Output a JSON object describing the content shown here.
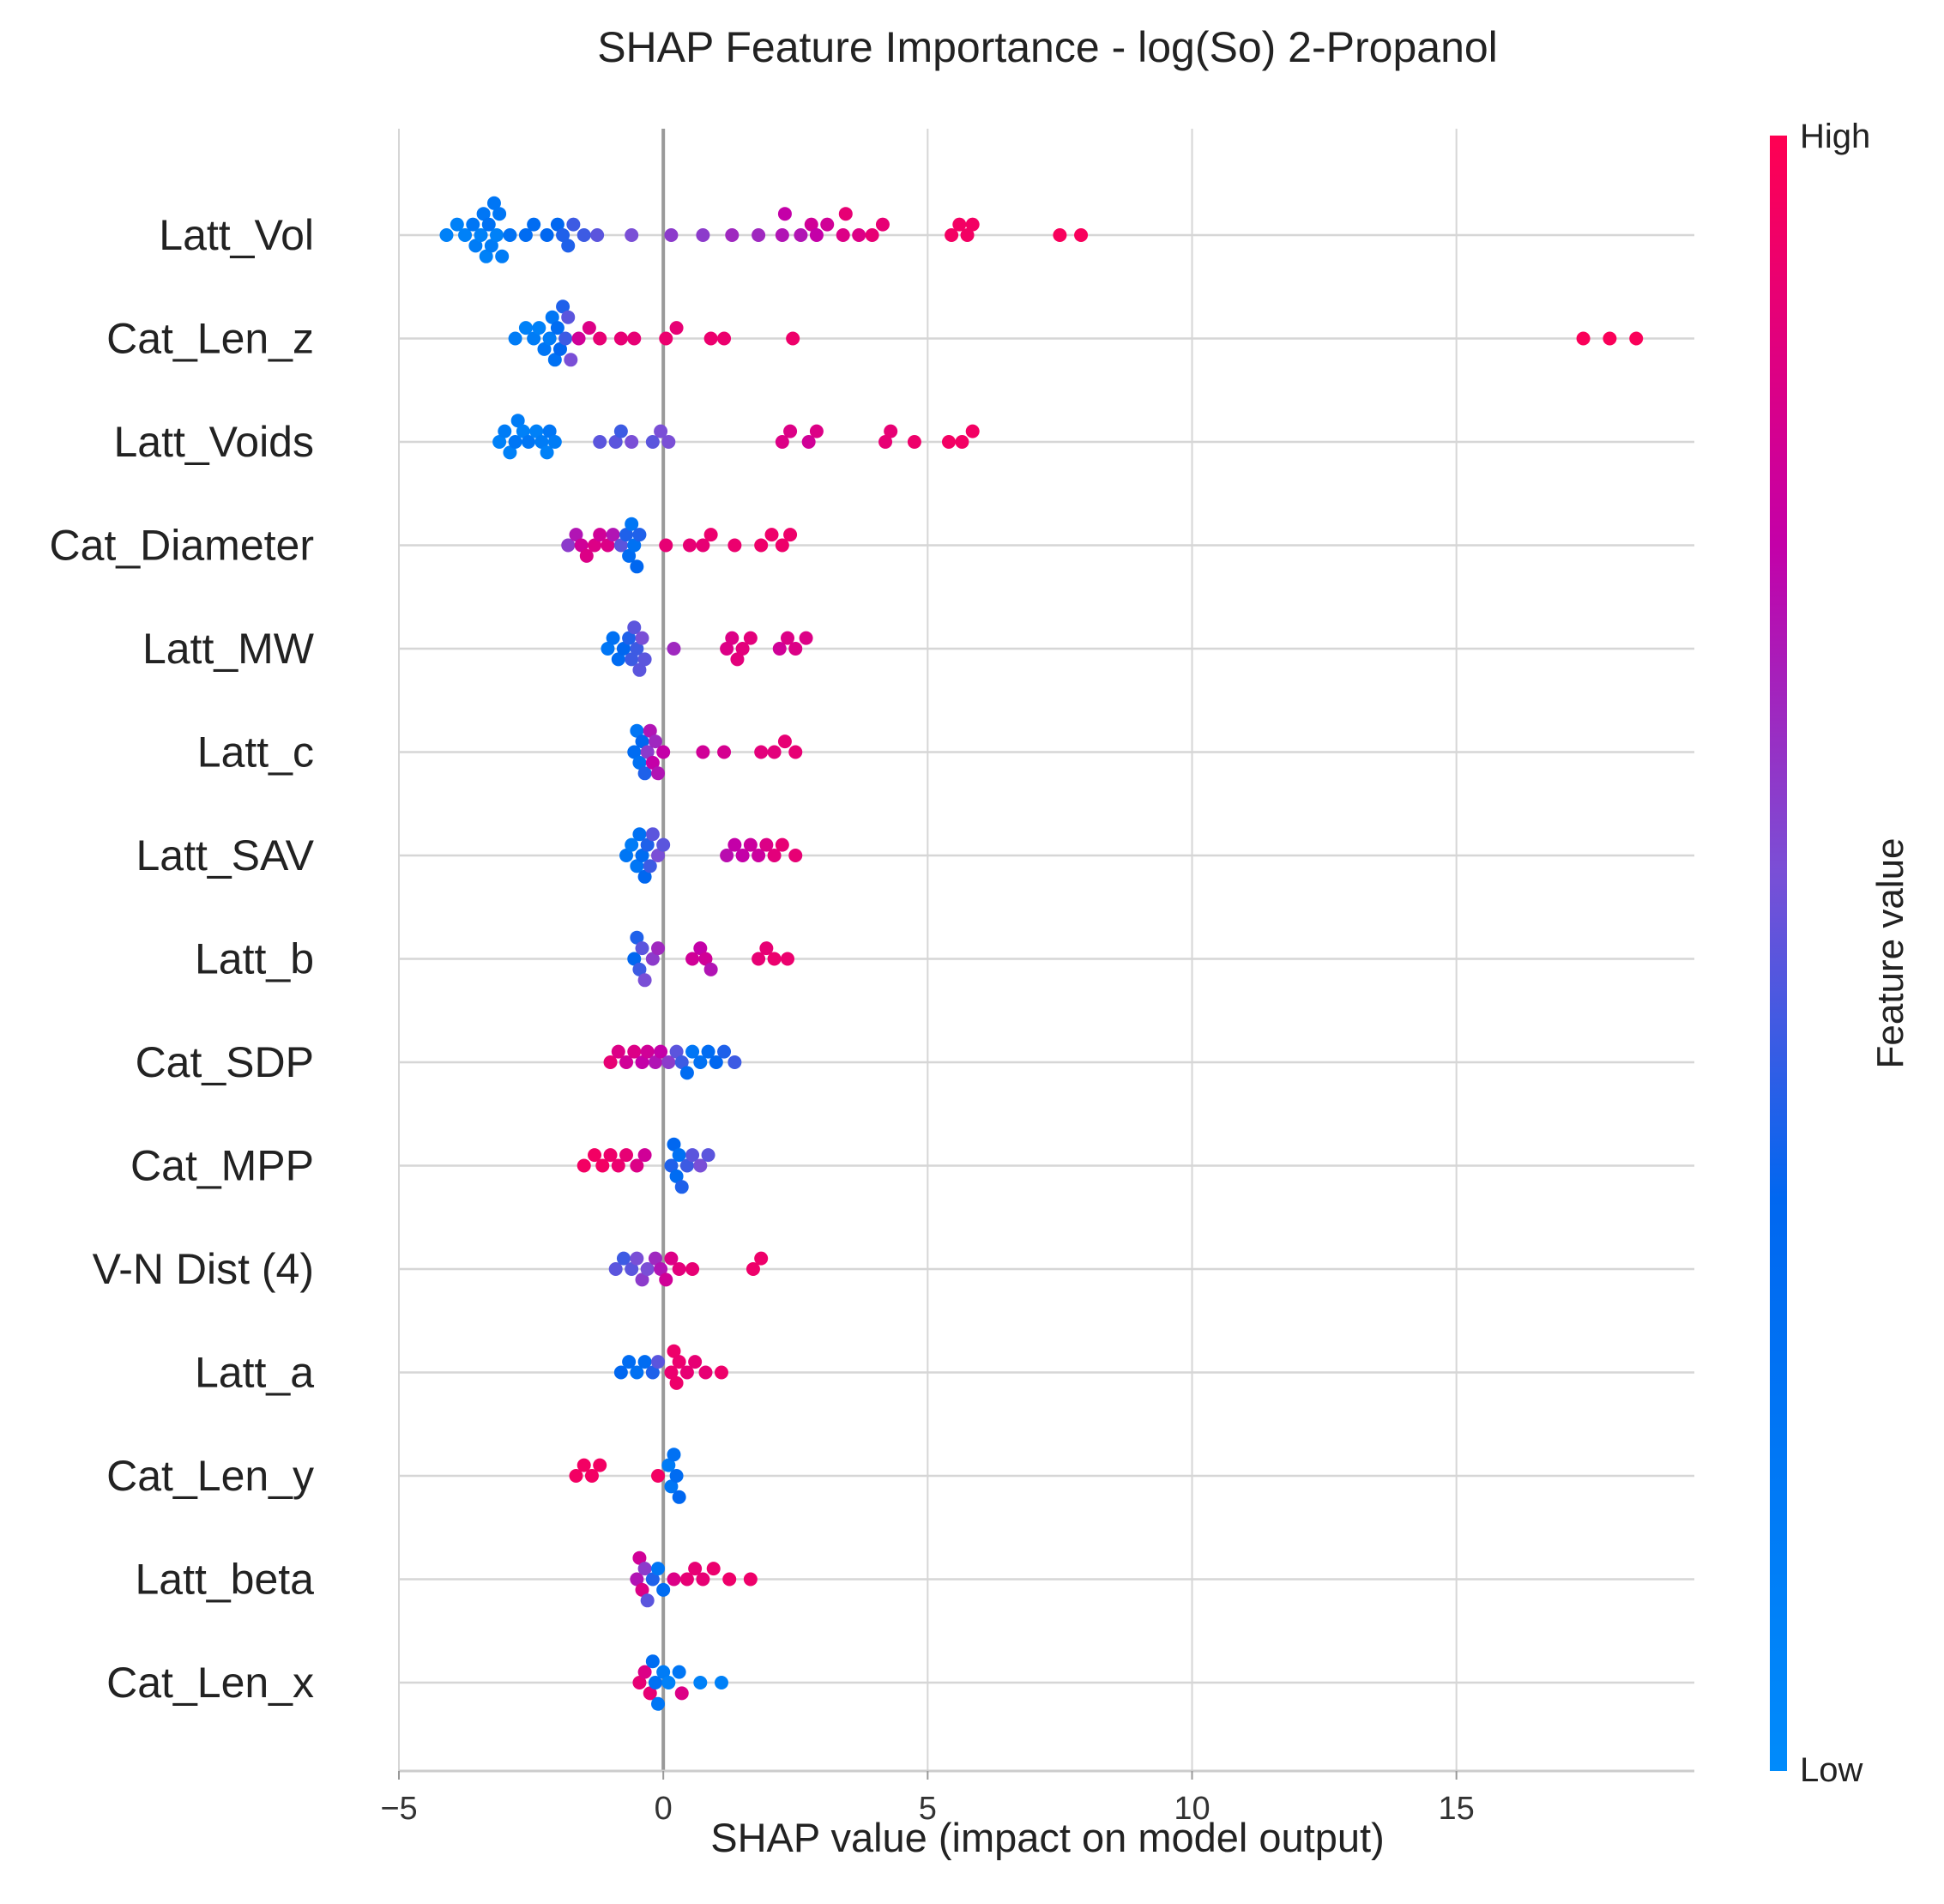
{
  "chart_data": {
    "type": "scatter",
    "subtype": "shap-beeswarm",
    "title": "SHAP Feature Importance - log(So) 2-Propanol",
    "xlabel": "SHAP value (impact on model output)",
    "xlim": [
      -5,
      19.5
    ],
    "xticks": [
      -5,
      0,
      5,
      10,
      15
    ],
    "xtick_labels": [
      "−5",
      "0",
      "5",
      "10",
      "15"
    ],
    "grid": true,
    "colorbar": {
      "label": "Feature value",
      "high_label": "High",
      "low_label": "Low",
      "low_color": "#008bfb",
      "high_color": "#ff0052"
    },
    "features": [
      {
        "name": "Latt_Vol",
        "points": [
          [
            -4.1,
            0.1
          ],
          [
            -3.9,
            0.1
          ],
          [
            -3.75,
            0.1
          ],
          [
            -3.6,
            0.2
          ],
          [
            -3.55,
            0.15
          ],
          [
            -3.45,
            0.1
          ],
          [
            -3.4,
            0.2
          ],
          [
            -3.35,
            0.1
          ],
          [
            -3.3,
            0.25
          ],
          [
            -3.25,
            0.15
          ],
          [
            -3.2,
            0.2
          ],
          [
            -3.15,
            0.1
          ],
          [
            -3.1,
            0.2
          ],
          [
            -3.05,
            0.15
          ],
          [
            -2.9,
            0.25
          ],
          [
            -2.6,
            0.3
          ],
          [
            -2.45,
            0.3
          ],
          [
            -2.2,
            0.35
          ],
          [
            -2.0,
            0.35
          ],
          [
            -1.9,
            0.4
          ],
          [
            -1.8,
            0.4
          ],
          [
            -1.7,
            0.45
          ],
          [
            -1.5,
            0.45
          ],
          [
            -1.25,
            0.5
          ],
          [
            -0.6,
            0.55
          ],
          [
            0.15,
            0.6
          ],
          [
            0.75,
            0.6
          ],
          [
            1.3,
            0.65
          ],
          [
            1.8,
            0.65
          ],
          [
            2.25,
            0.7
          ],
          [
            2.3,
            0.75
          ],
          [
            2.6,
            0.7
          ],
          [
            2.8,
            0.8
          ],
          [
            2.9,
            0.75
          ],
          [
            3.1,
            0.8
          ],
          [
            3.4,
            0.85
          ],
          [
            3.45,
            0.9
          ],
          [
            3.7,
            0.85
          ],
          [
            3.95,
            0.9
          ],
          [
            4.15,
            0.9
          ],
          [
            5.45,
            0.95
          ],
          [
            5.6,
            0.95
          ],
          [
            5.75,
            0.95
          ],
          [
            5.85,
            0.95
          ],
          [
            7.5,
            0.97
          ],
          [
            7.9,
            0.97
          ]
        ]
      },
      {
        "name": "Cat_Len_z",
        "points": [
          [
            -2.8,
            0.15
          ],
          [
            -2.6,
            0.1
          ],
          [
            -2.45,
            0.15
          ],
          [
            -2.35,
            0.1
          ],
          [
            -2.25,
            0.2
          ],
          [
            -2.15,
            0.15
          ],
          [
            -2.1,
            0.2
          ],
          [
            -2.05,
            0.25
          ],
          [
            -2.0,
            0.3
          ],
          [
            -1.95,
            0.35
          ],
          [
            -1.9,
            0.4
          ],
          [
            -1.85,
            0.45
          ],
          [
            -1.8,
            0.5
          ],
          [
            -1.75,
            0.55
          ],
          [
            -1.6,
            0.8
          ],
          [
            -1.4,
            0.85
          ],
          [
            -1.2,
            0.9
          ],
          [
            -0.8,
            0.9
          ],
          [
            -0.55,
            0.9
          ],
          [
            0.05,
            0.92
          ],
          [
            0.25,
            0.9
          ],
          [
            0.9,
            0.92
          ],
          [
            1.15,
            0.92
          ],
          [
            2.45,
            0.93
          ],
          [
            17.4,
            0.98
          ],
          [
            17.9,
            0.98
          ],
          [
            18.4,
            0.98
          ]
        ]
      },
      {
        "name": "Latt_Voids",
        "points": [
          [
            -3.1,
            0.1
          ],
          [
            -3.0,
            0.15
          ],
          [
            -2.9,
            0.1
          ],
          [
            -2.8,
            0.2
          ],
          [
            -2.75,
            0.15
          ],
          [
            -2.65,
            0.1
          ],
          [
            -2.55,
            0.2
          ],
          [
            -2.4,
            0.1
          ],
          [
            -2.3,
            0.15
          ],
          [
            -2.2,
            0.1
          ],
          [
            -2.15,
            0.2
          ],
          [
            -2.05,
            0.15
          ],
          [
            -1.2,
            0.5
          ],
          [
            -0.9,
            0.5
          ],
          [
            -0.8,
            0.45
          ],
          [
            -0.6,
            0.55
          ],
          [
            -0.2,
            0.5
          ],
          [
            -0.05,
            0.55
          ],
          [
            0.1,
            0.55
          ],
          [
            2.25,
            0.85
          ],
          [
            2.4,
            0.85
          ],
          [
            2.75,
            0.8
          ],
          [
            2.9,
            0.85
          ],
          [
            4.2,
            0.9
          ],
          [
            4.3,
            0.9
          ],
          [
            4.75,
            0.93
          ],
          [
            5.4,
            0.95
          ],
          [
            5.65,
            0.95
          ],
          [
            5.85,
            0.95
          ]
        ]
      },
      {
        "name": "Cat_Diameter",
        "points": [
          [
            -1.8,
            0.6
          ],
          [
            -1.65,
            0.7
          ],
          [
            -1.55,
            0.8
          ],
          [
            -1.45,
            0.85
          ],
          [
            -1.3,
            0.85
          ],
          [
            -1.2,
            0.8
          ],
          [
            -1.05,
            0.85
          ],
          [
            -0.95,
            0.7
          ],
          [
            -0.8,
            0.5
          ],
          [
            -0.7,
            0.4
          ],
          [
            -0.65,
            0.3
          ],
          [
            -0.6,
            0.2
          ],
          [
            -0.55,
            0.25
          ],
          [
            -0.5,
            0.35
          ],
          [
            -0.45,
            0.4
          ],
          [
            0.05,
            0.9
          ],
          [
            0.5,
            0.9
          ],
          [
            0.75,
            0.9
          ],
          [
            0.9,
            0.92
          ],
          [
            1.35,
            0.92
          ],
          [
            1.85,
            0.93
          ],
          [
            2.05,
            0.93
          ],
          [
            2.25,
            0.93
          ],
          [
            2.4,
            0.93
          ]
        ]
      },
      {
        "name": "Latt_MW",
        "points": [
          [
            -1.05,
            0.2
          ],
          [
            -0.95,
            0.25
          ],
          [
            -0.85,
            0.3
          ],
          [
            -0.75,
            0.35
          ],
          [
            -0.65,
            0.4
          ],
          [
            -0.6,
            0.45
          ],
          [
            -0.55,
            0.5
          ],
          [
            -0.5,
            0.45
          ],
          [
            -0.45,
            0.5
          ],
          [
            -0.4,
            0.55
          ],
          [
            -0.35,
            0.5
          ],
          [
            0.2,
            0.65
          ],
          [
            1.2,
            0.85
          ],
          [
            1.3,
            0.85
          ],
          [
            1.4,
            0.88
          ],
          [
            1.5,
            0.88
          ],
          [
            1.65,
            0.88
          ],
          [
            2.2,
            0.8
          ],
          [
            2.35,
            0.85
          ],
          [
            2.5,
            0.85
          ],
          [
            2.7,
            0.85
          ]
        ]
      },
      {
        "name": "Latt_c",
        "points": [
          [
            -0.55,
            0.3
          ],
          [
            -0.5,
            0.2
          ],
          [
            -0.45,
            0.25
          ],
          [
            -0.4,
            0.35
          ],
          [
            -0.35,
            0.4
          ],
          [
            -0.3,
            0.6
          ],
          [
            -0.25,
            0.7
          ],
          [
            -0.2,
            0.75
          ],
          [
            -0.15,
            0.65
          ],
          [
            -0.1,
            0.7
          ],
          [
            0.0,
            0.75
          ],
          [
            0.75,
            0.8
          ],
          [
            1.15,
            0.82
          ],
          [
            1.85,
            0.88
          ],
          [
            2.1,
            0.88
          ],
          [
            2.3,
            0.9
          ],
          [
            2.5,
            0.9
          ]
        ]
      },
      {
        "name": "Latt_SAV",
        "points": [
          [
            -0.7,
            0.2
          ],
          [
            -0.6,
            0.15
          ],
          [
            -0.5,
            0.2
          ],
          [
            -0.45,
            0.25
          ],
          [
            -0.4,
            0.3
          ],
          [
            -0.35,
            0.35
          ],
          [
            -0.3,
            0.4
          ],
          [
            -0.25,
            0.45
          ],
          [
            -0.2,
            0.5
          ],
          [
            -0.1,
            0.55
          ],
          [
            0.0,
            0.5
          ],
          [
            1.2,
            0.72
          ],
          [
            1.35,
            0.75
          ],
          [
            1.5,
            0.75
          ],
          [
            1.65,
            0.78
          ],
          [
            1.8,
            0.78
          ],
          [
            1.95,
            0.85
          ],
          [
            2.1,
            0.88
          ],
          [
            2.25,
            0.9
          ],
          [
            2.5,
            0.9
          ]
        ]
      },
      {
        "name": "Latt_b",
        "points": [
          [
            -0.55,
            0.35
          ],
          [
            -0.5,
            0.4
          ],
          [
            -0.45,
            0.45
          ],
          [
            -0.4,
            0.5
          ],
          [
            -0.35,
            0.55
          ],
          [
            -0.2,
            0.6
          ],
          [
            -0.1,
            0.65
          ],
          [
            0.55,
            0.8
          ],
          [
            0.7,
            0.75
          ],
          [
            0.8,
            0.8
          ],
          [
            0.9,
            0.7
          ],
          [
            1.8,
            0.9
          ],
          [
            1.95,
            0.9
          ],
          [
            2.1,
            0.92
          ],
          [
            2.35,
            0.92
          ]
        ]
      },
      {
        "name": "Cat_SDP",
        "points": [
          [
            -1.0,
            0.9
          ],
          [
            -0.85,
            0.85
          ],
          [
            -0.7,
            0.8
          ],
          [
            -0.55,
            0.85
          ],
          [
            -0.4,
            0.75
          ],
          [
            -0.3,
            0.8
          ],
          [
            -0.15,
            0.7
          ],
          [
            -0.05,
            0.75
          ],
          [
            0.1,
            0.6
          ],
          [
            0.25,
            0.5
          ],
          [
            0.35,
            0.45
          ],
          [
            0.45,
            0.3
          ],
          [
            0.55,
            0.2
          ],
          [
            0.7,
            0.25
          ],
          [
            0.85,
            0.3
          ],
          [
            1.0,
            0.35
          ],
          [
            1.15,
            0.4
          ],
          [
            1.35,
            0.45
          ]
        ]
      },
      {
        "name": "Cat_MPP",
        "points": [
          [
            -1.5,
            0.95
          ],
          [
            -1.3,
            0.95
          ],
          [
            -1.15,
            0.95
          ],
          [
            -1.0,
            0.93
          ],
          [
            -0.85,
            0.92
          ],
          [
            -0.7,
            0.9
          ],
          [
            -0.5,
            0.85
          ],
          [
            -0.35,
            0.8
          ],
          [
            0.15,
            0.4
          ],
          [
            0.2,
            0.35
          ],
          [
            0.25,
            0.3
          ],
          [
            0.3,
            0.25
          ],
          [
            0.35,
            0.4
          ],
          [
            0.45,
            0.45
          ],
          [
            0.55,
            0.5
          ],
          [
            0.7,
            0.55
          ],
          [
            0.85,
            0.5
          ]
        ]
      },
      {
        "name": "V-N Dist (4)",
        "points": [
          [
            -0.9,
            0.5
          ],
          [
            -0.75,
            0.45
          ],
          [
            -0.6,
            0.5
          ],
          [
            -0.5,
            0.55
          ],
          [
            -0.4,
            0.6
          ],
          [
            -0.3,
            0.55
          ],
          [
            -0.15,
            0.65
          ],
          [
            -0.05,
            0.7
          ],
          [
            0.05,
            0.8
          ],
          [
            0.15,
            0.85
          ],
          [
            0.3,
            0.88
          ],
          [
            0.55,
            0.9
          ],
          [
            1.7,
            0.93
          ],
          [
            1.85,
            0.93
          ]
        ]
      },
      {
        "name": "Latt_a",
        "points": [
          [
            -0.8,
            0.35
          ],
          [
            -0.65,
            0.3
          ],
          [
            -0.5,
            0.25
          ],
          [
            -0.35,
            0.3
          ],
          [
            -0.2,
            0.4
          ],
          [
            -0.1,
            0.5
          ],
          [
            0.15,
            0.92
          ],
          [
            0.2,
            0.93
          ],
          [
            0.25,
            0.93
          ],
          [
            0.3,
            0.92
          ],
          [
            0.45,
            0.9
          ],
          [
            0.6,
            0.9
          ],
          [
            0.8,
            0.9
          ],
          [
            1.1,
            0.93
          ]
        ]
      },
      {
        "name": "Cat_Len_y",
        "points": [
          [
            -1.65,
            0.95
          ],
          [
            -1.5,
            0.95
          ],
          [
            -1.35,
            0.95
          ],
          [
            -1.2,
            0.95
          ],
          [
            -0.1,
            0.95
          ],
          [
            0.1,
            0.15
          ],
          [
            0.15,
            0.2
          ],
          [
            0.2,
            0.25
          ],
          [
            0.25,
            0.3
          ],
          [
            0.3,
            0.35
          ]
        ]
      },
      {
        "name": "Latt_beta",
        "points": [
          [
            -0.5,
            0.7
          ],
          [
            -0.45,
            0.8
          ],
          [
            -0.4,
            0.85
          ],
          [
            -0.35,
            0.6
          ],
          [
            -0.3,
            0.5
          ],
          [
            -0.2,
            0.4
          ],
          [
            -0.1,
            0.2
          ],
          [
            0.0,
            0.3
          ],
          [
            0.2,
            0.85
          ],
          [
            0.45,
            0.9
          ],
          [
            0.6,
            0.9
          ],
          [
            0.75,
            0.9
          ],
          [
            0.95,
            0.92
          ],
          [
            1.25,
            0.93
          ],
          [
            1.65,
            0.93
          ]
        ]
      },
      {
        "name": "Cat_Len_x",
        "points": [
          [
            -0.45,
            0.9
          ],
          [
            -0.35,
            0.85
          ],
          [
            -0.25,
            0.9
          ],
          [
            -0.2,
            0.3
          ],
          [
            -0.15,
            0.25
          ],
          [
            -0.1,
            0.2
          ],
          [
            0.0,
            0.15
          ],
          [
            0.1,
            0.1
          ],
          [
            0.3,
            0.2
          ],
          [
            0.35,
            0.85
          ],
          [
            0.7,
            0.1
          ],
          [
            1.1,
            0.1
          ]
        ]
      }
    ]
  }
}
